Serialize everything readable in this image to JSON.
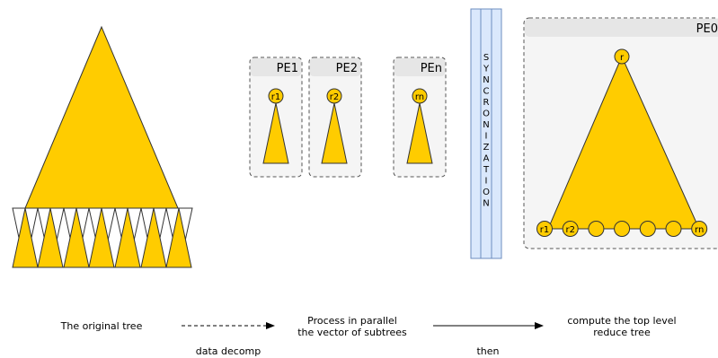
{
  "colors": {
    "tree_fill": "#ffcc00",
    "tree_stroke": "#333333",
    "pe_box_fill": "#f5f5f5",
    "pe_header_fill": "#e6e6e6",
    "pe_border": "#555555",
    "sync_fill": "#dae8fc",
    "sync_stroke": "#6c8ebf"
  },
  "pe_boxes": [
    {
      "label": "PE1",
      "root_label": "r1"
    },
    {
      "label": "PE2",
      "root_label": "r2"
    },
    {
      "label": "PEn",
      "root_label": "rn"
    }
  ],
  "sync": {
    "letters": [
      "S",
      "Y",
      "N",
      "C",
      "R",
      "O",
      "N",
      "I",
      "Z",
      "A",
      "T",
      "I",
      "O",
      "N"
    ]
  },
  "pe0": {
    "label": "PE0",
    "root_label": "r",
    "leaves": [
      "r1",
      "r2",
      "",
      "",
      "",
      "",
      "rn"
    ]
  },
  "captions": {
    "original": "The original tree",
    "process_line1": "Process in parallel",
    "process_line2": "the vector of subtrees",
    "compute_line1": "compute the top level",
    "compute_line2": "reduce tree",
    "data_decomp": "data decomp",
    "then": "then"
  }
}
